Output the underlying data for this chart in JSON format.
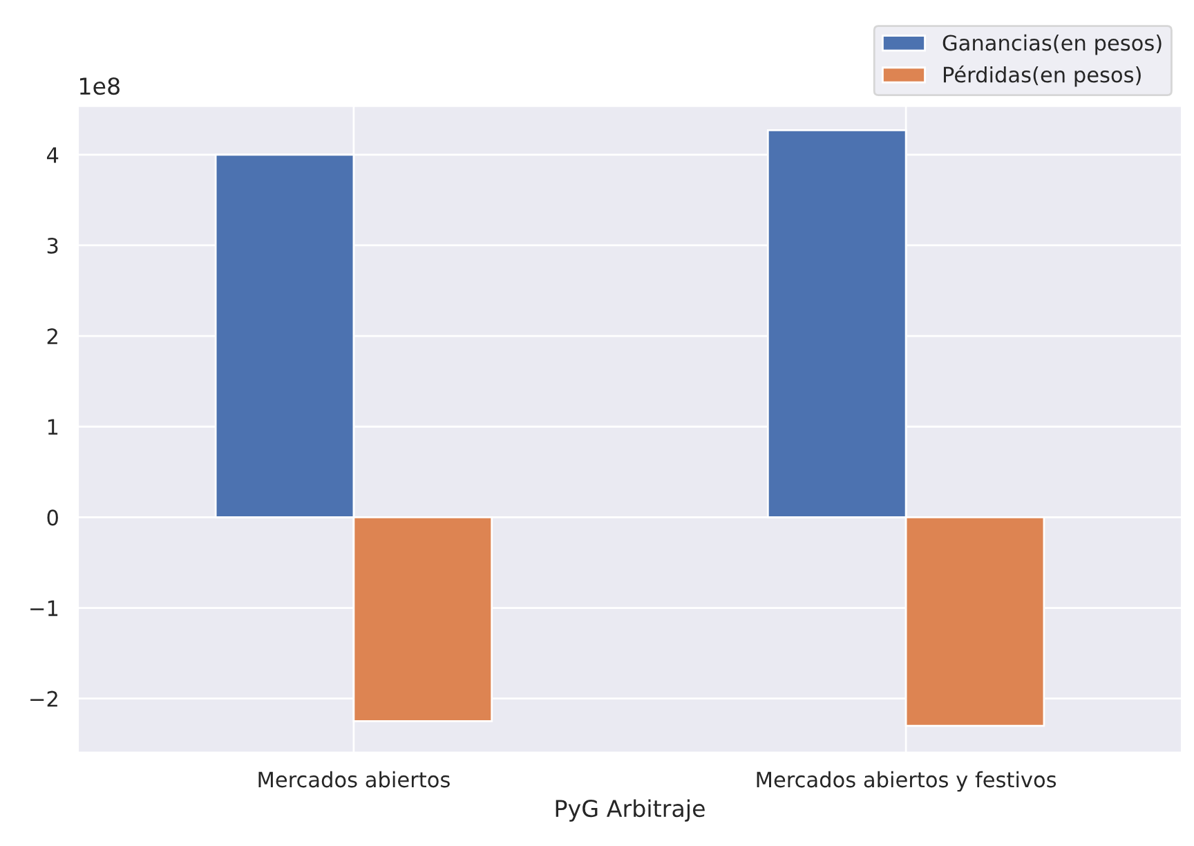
{
  "chart_data": {
    "type": "bar",
    "xlabel": "PyG Arbitraje",
    "categories": [
      "Mercados abiertos",
      "Mercados abiertos y festivos"
    ],
    "series": [
      {
        "name": "Ganancias(en pesos)",
        "color": "#4c72b0",
        "values": [
          4.0,
          4.27
        ]
      },
      {
        "name": "Pérdidas(en pesos)",
        "color": "#dd8452",
        "values": [
          -2.25,
          -2.3
        ]
      }
    ],
    "ylim": [
      -2.6,
      4.54
    ],
    "yticks": [
      -2,
      -1,
      0,
      1,
      2,
      3,
      4
    ],
    "annotations": [
      "1e8"
    ],
    "grid": true,
    "legend": "top right"
  }
}
